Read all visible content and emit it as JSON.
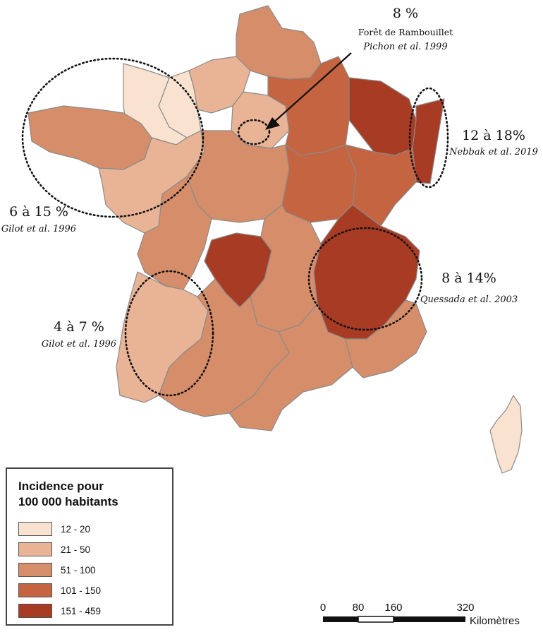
{
  "colors": {
    "c12_20": "#f9e3d0",
    "c21_50": "#e9b496",
    "c51_100": "#d68e6a",
    "c101_150": "#c46440",
    "c151_459": "#a83b23",
    "border": "#8a8a8a"
  },
  "annotations": {
    "rambouillet": {
      "pct": "8 %",
      "place": "Forêt de Rambouillet",
      "source": "Pichon et al. 1999"
    },
    "alsace": {
      "pct": "12 à 18%",
      "source": "Nebbak et al. 2019"
    },
    "bretagne": {
      "pct": "6 à 15 %",
      "source": "Gilot et al. 1996"
    },
    "alpes": {
      "pct": "8 à 14%",
      "source": "Quessada et al. 2003"
    },
    "landes": {
      "pct": "4 à 7 %",
      "source": "Gilot et al. 1996"
    }
  },
  "legend": {
    "title_line1": "Incidence pour",
    "title_line2": "100 000 habitants",
    "items": [
      {
        "label": "12 - 20",
        "color": "#f9e3d0"
      },
      {
        "label": "21 - 50",
        "color": "#e9b496"
      },
      {
        "label": "51 - 100",
        "color": "#d68e6a"
      },
      {
        "label": "101 - 150",
        "color": "#c46440"
      },
      {
        "label": "151 - 459",
        "color": "#a83b23"
      }
    ]
  },
  "scale_bar": {
    "ticks": [
      "0",
      "80",
      "160",
      "320"
    ],
    "unit": "Kilomètres"
  }
}
